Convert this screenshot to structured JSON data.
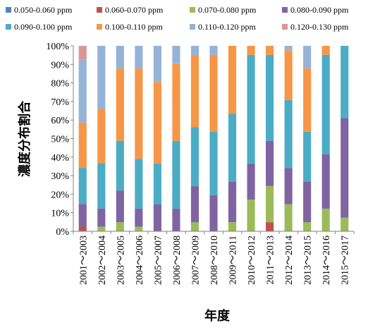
{
  "chart_data": {
    "type": "bar",
    "stacked": true,
    "normalized": true,
    "categories": [
      "2001～2003",
      "2002～2004",
      "2003～2005",
      "2004～2006",
      "2005～2007",
      "2006～2008",
      "2007～2009",
      "2008～2010",
      "2009～2011",
      "2010～2012",
      "2011～2013",
      "2012～2014",
      "2013～2015",
      "2014～2016",
      "2015～2017"
    ],
    "series": [
      {
        "name": "0.050-0.060 ppm",
        "color": "#4f81bd",
        "values": [
          0,
          0,
          0,
          0,
          0,
          0,
          0,
          0,
          0,
          0,
          0,
          0,
          0,
          0,
          0
        ]
      },
      {
        "name": "0.060-0.070 ppm",
        "color": "#c0504d",
        "values": [
          2.5,
          0,
          0,
          0,
          0,
          0,
          0,
          0,
          0,
          0,
          4.9,
          0,
          0,
          0,
          0
        ]
      },
      {
        "name": "0.070-0.080 ppm",
        "color": "#9bbb59",
        "values": [
          0,
          2.5,
          4.9,
          2.5,
          0,
          0,
          4.9,
          0,
          4.9,
          17.1,
          19.5,
          14.6,
          4.9,
          12.2,
          7.3
        ]
      },
      {
        "name": "0.080-0.090 ppm",
        "color": "#8064a2",
        "values": [
          12.2,
          9.8,
          17.1,
          9.8,
          14.6,
          12.2,
          19.5,
          19.5,
          22.0,
          19.5,
          24.4,
          19.5,
          22.0,
          29.3,
          53.7
        ]
      },
      {
        "name": "0.090-0.100 ppm",
        "color": "#4bacc6",
        "values": [
          19.5,
          24.4,
          26.8,
          26.8,
          22.0,
          36.6,
          31.7,
          34.1,
          36.6,
          58.5,
          46.3,
          36.6,
          26.8,
          53.7,
          39.0
        ]
      },
      {
        "name": "0.100-0.110 ppm",
        "color": "#f79646",
        "values": [
          24.4,
          29.3,
          39.0,
          48.8,
          43.9,
          41.5,
          39.0,
          41.5,
          36.6,
          4.9,
          4.9,
          26.8,
          34.1,
          4.9,
          0
        ]
      },
      {
        "name": "0.110-0.120 ppm",
        "color": "#95b3d7",
        "values": [
          34.1,
          34.1,
          12.2,
          12.2,
          19.5,
          9.8,
          4.9,
          4.9,
          0,
          0,
          0,
          2.4,
          12.2,
          0,
          0
        ]
      },
      {
        "name": "0.120-0.130 ppm",
        "color": "#da9694",
        "values": [
          7.3,
          0,
          0,
          0,
          0,
          0,
          0,
          0,
          0,
          0,
          0,
          0,
          0,
          0,
          0
        ]
      }
    ],
    "xlabel": "年度",
    "ylabel": "濃度分布割合",
    "ylim": [
      0,
      100
    ],
    "yticks": [
      "0%",
      "10%",
      "20%",
      "30%",
      "40%",
      "50%",
      "60%",
      "70%",
      "80%",
      "90%",
      "100%"
    ],
    "legend_position": "top",
    "grid": false
  }
}
